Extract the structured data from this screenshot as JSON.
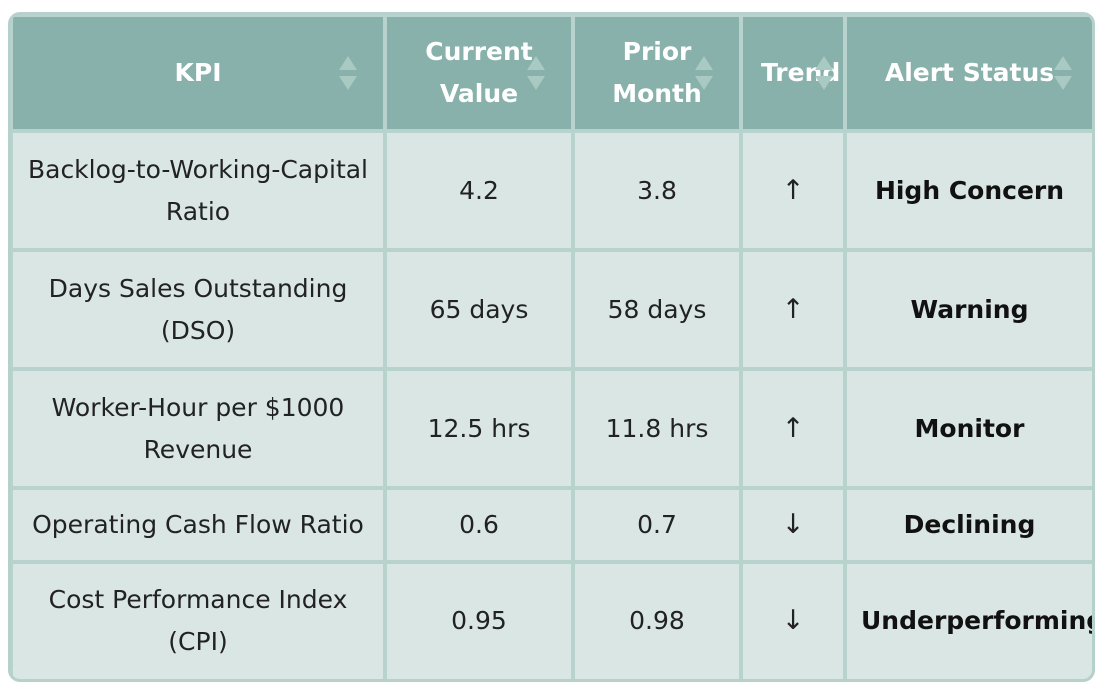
{
  "table": {
    "headers": [
      "KPI",
      "Current Value",
      "Prior Month",
      "Trend",
      "Alert Status"
    ],
    "rows": [
      {
        "kpi": "Backlog-to-Working-Capital Ratio",
        "current": "4.2",
        "prior": "3.8",
        "trend": "↑",
        "alert": "High Concern"
      },
      {
        "kpi": "Days Sales Outstanding (DSO)",
        "current": "65 days",
        "prior": "58 days",
        "trend": "↑",
        "alert": "Warning"
      },
      {
        "kpi": "Worker-Hour per $1000 Revenue",
        "current": "12.5 hrs",
        "prior": "11.8 hrs",
        "trend": "↑",
        "alert": "Monitor"
      },
      {
        "kpi": "Operating Cash Flow Ratio",
        "current": "0.6",
        "prior": "0.7",
        "trend": "↓",
        "alert": "Declining"
      },
      {
        "kpi": "Cost Performance Index (CPI)",
        "current": "0.95",
        "prior": "0.98",
        "trend": "↓",
        "alert": "Underperforming"
      }
    ]
  },
  "colors": {
    "header_bg": "#87b1aa",
    "cell_bg": "#d9e6e3",
    "grid": "#b8d3ce"
  }
}
